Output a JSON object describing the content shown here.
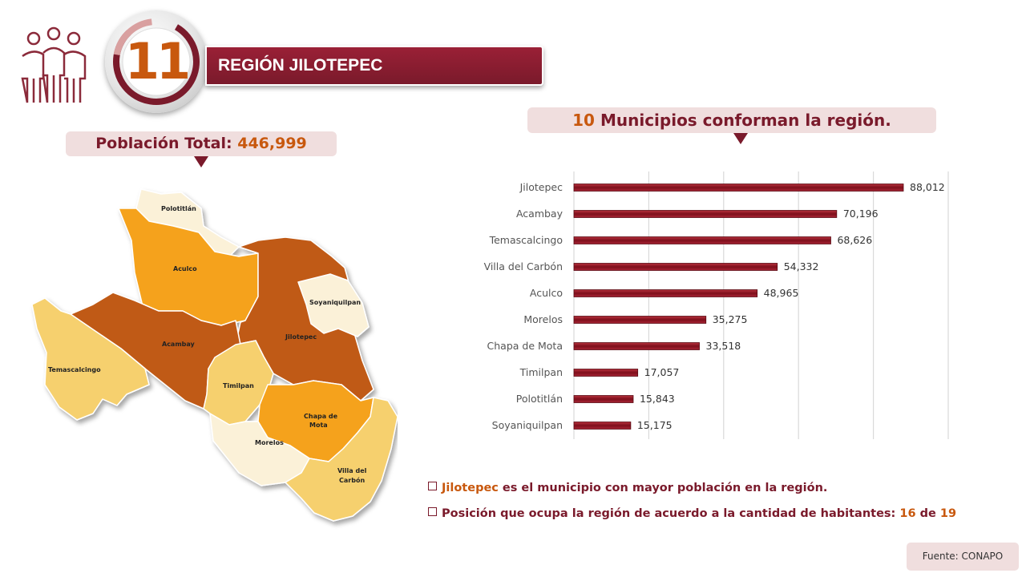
{
  "region": {
    "number": "11",
    "title": "REGIÓN JILOTEPEC"
  },
  "population": {
    "label": "Población Total:",
    "value": "446,999"
  },
  "municipios": {
    "count": "10",
    "text": "Municipios conforman la región."
  },
  "chart_data": {
    "type": "bar",
    "orientation": "horizontal",
    "categories": [
      "Jilotepec",
      "Acambay",
      "Temascalcingo",
      "Villa del Carbón",
      "Aculco",
      "Morelos",
      "Chapa de Mota",
      "Timilpan",
      "Polotitlán",
      "Soyaniquilpan"
    ],
    "values": [
      88012,
      70196,
      68626,
      54332,
      48965,
      35275,
      33518,
      17057,
      15843,
      15175
    ],
    "value_labels": [
      "88,012",
      "70,196",
      "68,626",
      "54,332",
      "48,965",
      "35,275",
      "33,518",
      "17,057",
      "15,843",
      "15,175"
    ],
    "xlim": [
      0,
      100000
    ],
    "grid": true,
    "bar_color": "#8b1521"
  },
  "map": {
    "labels": {
      "polotitlan": "Polotitlán",
      "aculco": "Aculco",
      "soyaniquilpan": "Soyaniquilpan",
      "jilotepec": "Jilotepec",
      "acambay": "Acambay",
      "temascalcingo": "Temascalcingo",
      "timilpan": "Timilpan",
      "chapa_line1": "Chapa de",
      "chapa_line2": "Mota",
      "morelos": "Morelos",
      "villa_line1": "Villa del",
      "villa_line2": "Carbón"
    }
  },
  "notes": {
    "line1_highlight": "Jilotepec",
    "line1_text": " es el municipio con mayor población en la región.",
    "line2_text": "Posición que ocupa la región de acuerdo a la cantidad de habitantes: ",
    "line2_pos": "16",
    "line2_de": " de ",
    "line2_total": "19"
  },
  "source": "Fuente: CONAPO",
  "colors": {
    "brand": "#7a1a2b",
    "accent": "#c8580e",
    "pill": "#f0dede"
  }
}
